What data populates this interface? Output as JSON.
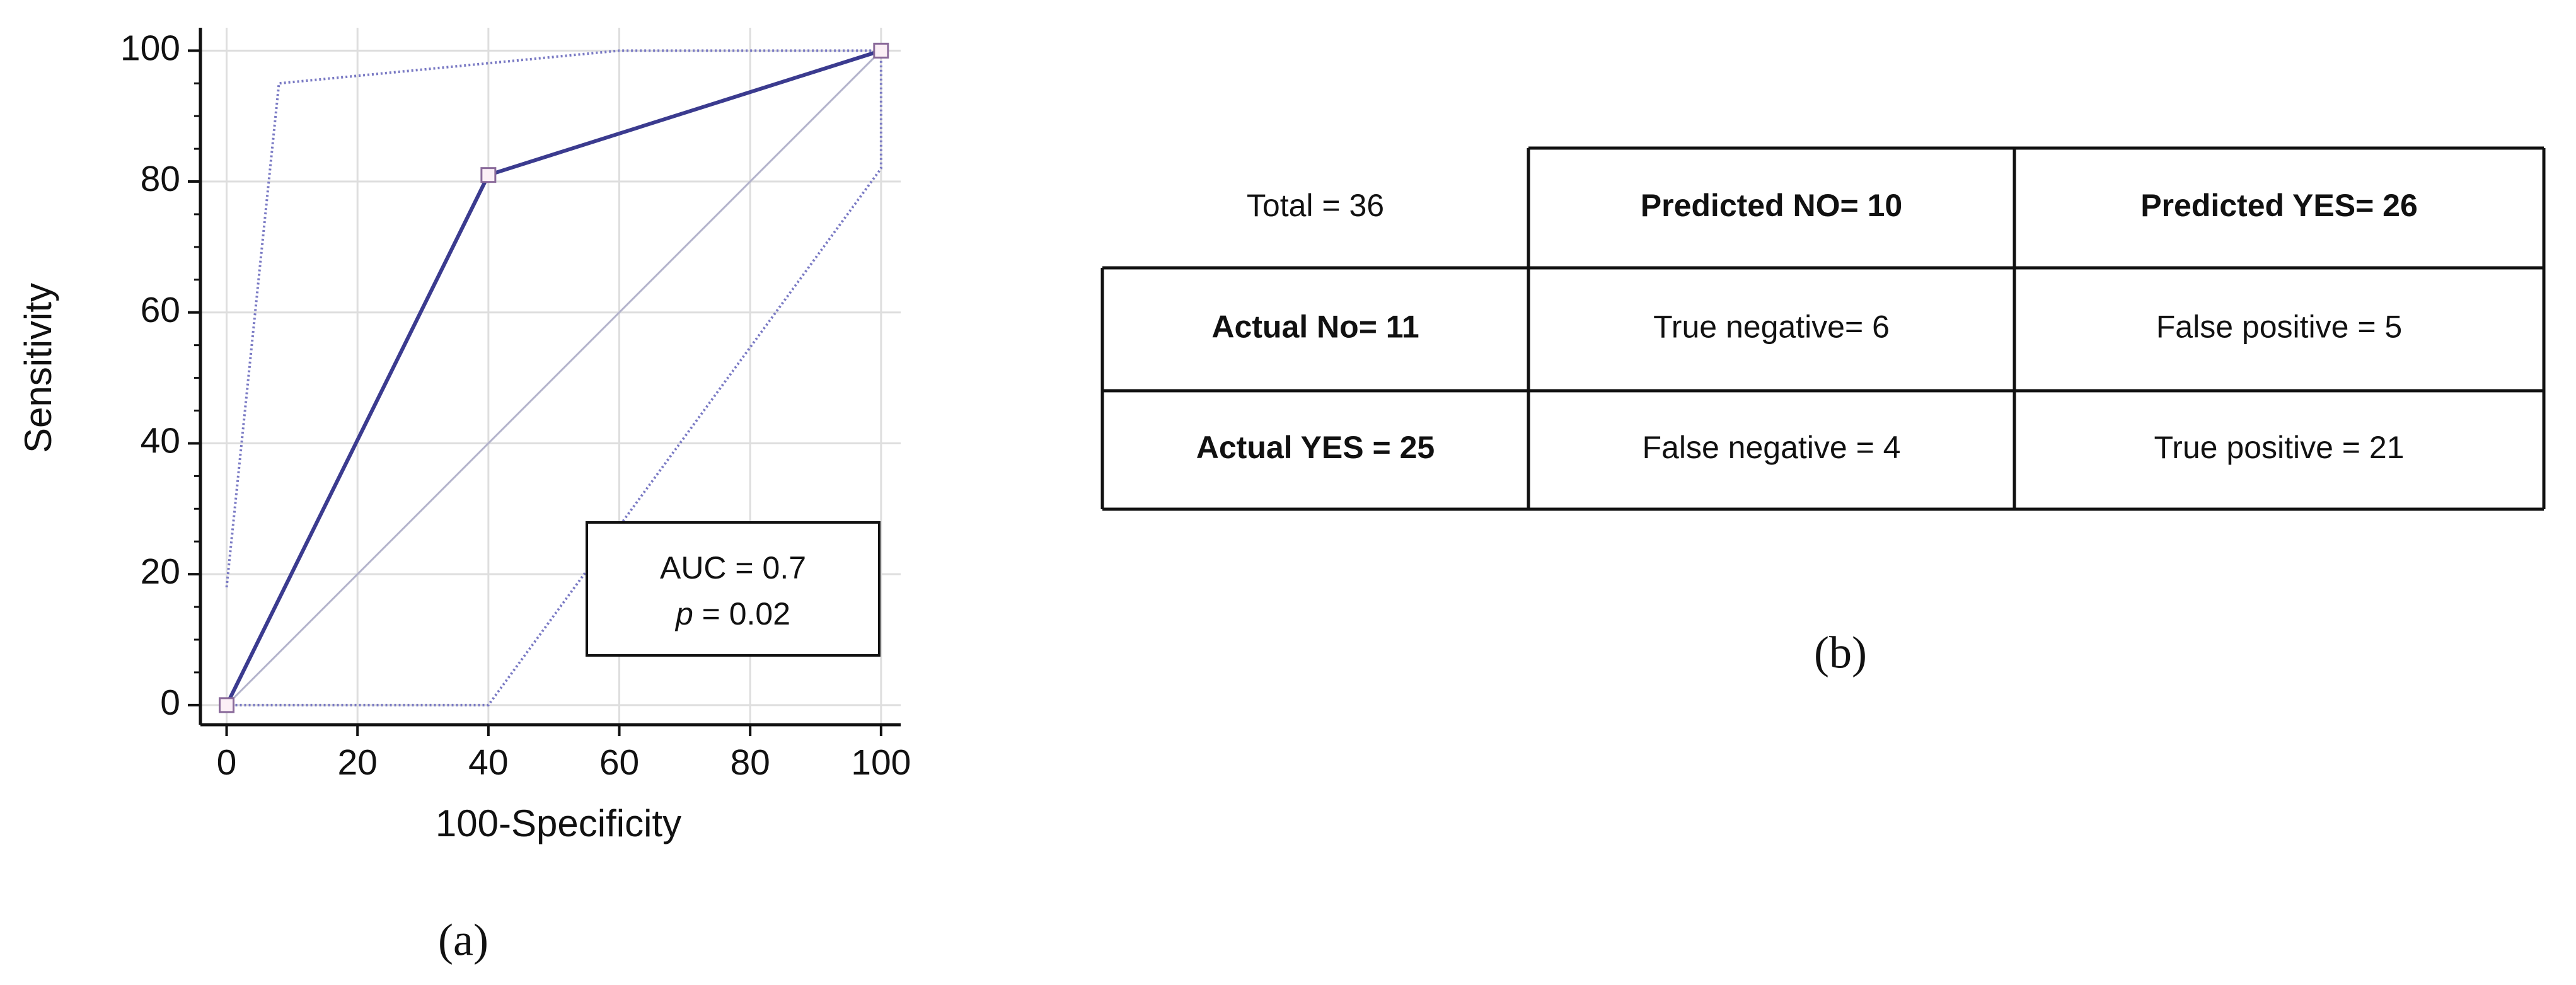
{
  "chart_data": {
    "type": "line",
    "xlabel": "100-Specificity",
    "ylabel": "Sensitivity",
    "xlim": [
      -4,
      103
    ],
    "ylim": [
      -3,
      103.5
    ],
    "xticks": [
      0,
      20,
      40,
      60,
      80,
      100
    ],
    "yticks": [
      0,
      20,
      40,
      60,
      80,
      100
    ],
    "yminorticks": [
      5,
      10,
      15,
      25,
      30,
      35,
      45,
      50,
      55,
      65,
      70,
      75,
      85,
      90,
      95
    ],
    "grid": true,
    "series": [
      {
        "color": "#3b3b8f",
        "style": "solid",
        "markers": true,
        "x": [
          0,
          40,
          100
        ],
        "values": [
          0,
          81,
          100
        ]
      },
      {
        "color": "#7a7ac4",
        "style": "dotted",
        "x": [
          0,
          8,
          60,
          100
        ],
        "values": [
          18,
          95,
          100,
          100
        ]
      },
      {
        "color": "#7a7ac4",
        "style": "dotted",
        "x": [
          0,
          40,
          100,
          100
        ],
        "values": [
          0,
          0,
          82,
          100
        ]
      },
      {
        "color": "#b4b4cc",
        "style": "thin",
        "x": [
          0,
          100
        ],
        "values": [
          0,
          100
        ]
      }
    ],
    "annotation": {
      "line1": "AUC = 0.7",
      "line2": [
        "p",
        " = 0.02"
      ]
    }
  },
  "panel_labels": [
    "(a)",
    "(b)"
  ],
  "table": {
    "rows": [
      [
        "Total = 36",
        "Predicted NO= 10",
        "Predicted YES= 26"
      ],
      [
        "Actual No= 11",
        "True negative= 6",
        "False positive = 5"
      ],
      [
        "Actual YES = 25",
        "False negative = 4",
        "True positive = 21"
      ]
    ]
  }
}
